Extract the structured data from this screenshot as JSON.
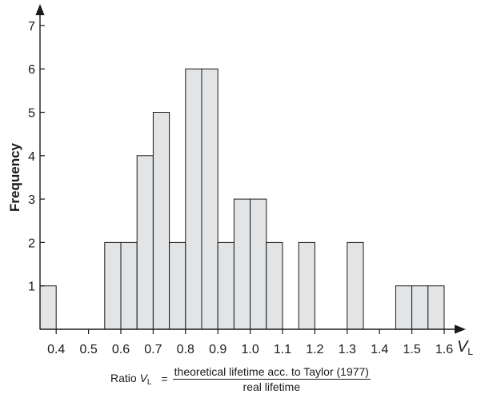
{
  "chart_data": {
    "type": "bar",
    "title": "",
    "ylabel": "Frequency",
    "x_axis_symbol": "V",
    "x_axis_symbol_subscript": "L",
    "xlabel": {
      "prefix": "Ratio",
      "symbol": "V",
      "subscript": "L",
      "equals": "=",
      "numerator": "theoretical lifetime acc. to Taylor (1977)",
      "denominator": "real lifetime"
    },
    "xlim": [
      0.35,
      1.62
    ],
    "ylim": [
      0,
      7.5
    ],
    "bin_width": 0.05,
    "x_ticks": [
      "0.4",
      "0.5",
      "0.6",
      "0.7",
      "0.8",
      "0.9",
      "1.0",
      "1.1",
      "1.2",
      "1.3",
      "1.4",
      "1.5",
      "1.6"
    ],
    "x_tick_values": [
      0.4,
      0.5,
      0.6,
      0.7,
      0.8,
      0.9,
      1.0,
      1.1,
      1.2,
      1.3,
      1.4,
      1.5,
      1.6
    ],
    "y_ticks": [
      "1",
      "2",
      "3",
      "4",
      "5",
      "6",
      "7"
    ],
    "y_tick_values": [
      1,
      2,
      3,
      4,
      5,
      6,
      7
    ],
    "bins": [
      {
        "x": 0.35,
        "count": 1
      },
      {
        "x": 0.55,
        "count": 2
      },
      {
        "x": 0.6,
        "count": 2
      },
      {
        "x": 0.65,
        "count": 4
      },
      {
        "x": 0.7,
        "count": 5
      },
      {
        "x": 0.75,
        "count": 2
      },
      {
        "x": 0.8,
        "count": 6
      },
      {
        "x": 0.85,
        "count": 6
      },
      {
        "x": 0.9,
        "count": 2
      },
      {
        "x": 0.95,
        "count": 3
      },
      {
        "x": 1.0,
        "count": 3
      },
      {
        "x": 1.05,
        "count": 2
      },
      {
        "x": 1.15,
        "count": 2
      },
      {
        "x": 1.3,
        "count": 2
      },
      {
        "x": 1.45,
        "count": 1
      },
      {
        "x": 1.5,
        "count": 1
      },
      {
        "x": 1.55,
        "count": 1
      }
    ],
    "bar_fill": "#e3e4e6",
    "bar_stroke": "#1a1a1a",
    "grid": false
  }
}
